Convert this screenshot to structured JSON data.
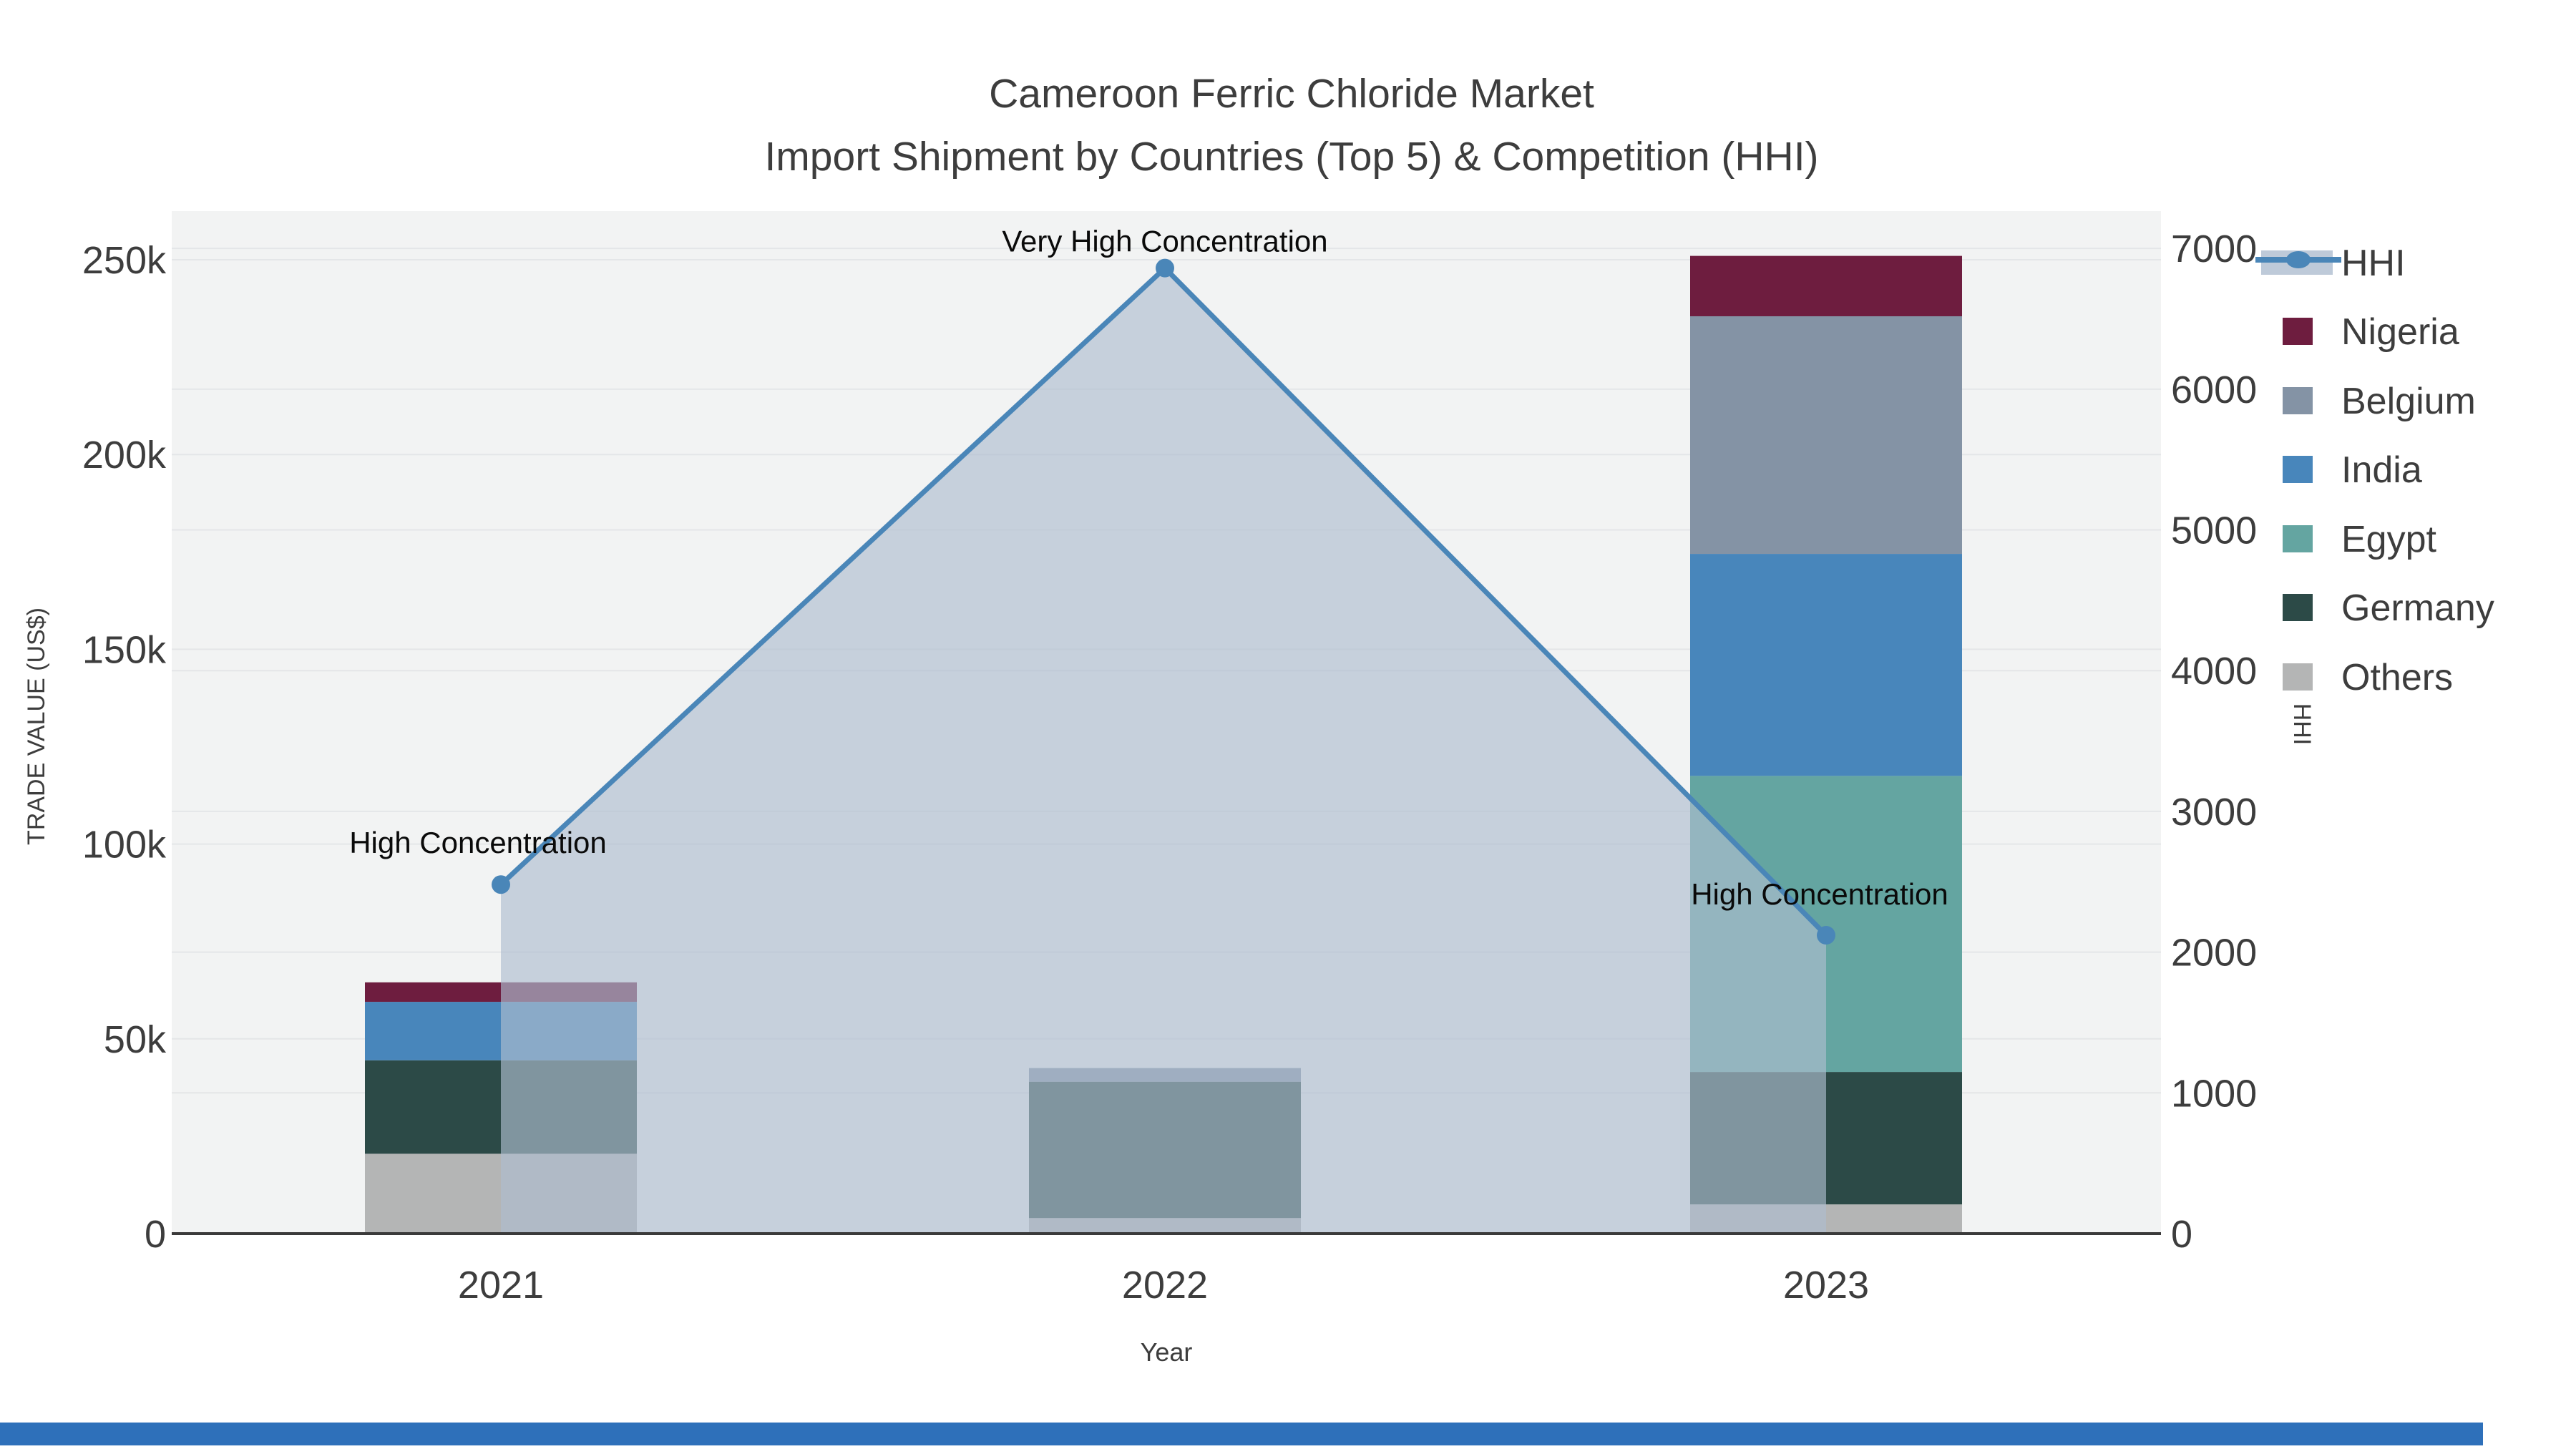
{
  "title": {
    "line1": "Cameroon Ferric Chloride Market",
    "line2": "Import Shipment by Countries (Top 5) & Competition (HHI)"
  },
  "chart_data": {
    "type": "combo: stacked-bar (left axis) + line-with-area (right axis)",
    "categories": [
      "2021",
      "2022",
      "2023"
    ],
    "series": [
      {
        "name": "Nigeria",
        "color": "#6e1d3f",
        "values": [
          5000,
          0,
          15500
        ]
      },
      {
        "name": "Belgium",
        "color": "#8493a5",
        "values": [
          0,
          3500,
          61000
        ]
      },
      {
        "name": "India",
        "color": "#4886bb",
        "values": [
          15000,
          0,
          57000
        ]
      },
      {
        "name": "Egypt",
        "color": "#64a5a1",
        "values": [
          0,
          0,
          76000
        ]
      },
      {
        "name": "Germany",
        "color": "#2c4a47",
        "values": [
          24000,
          35000,
          34000
        ]
      },
      {
        "name": "Others",
        "color": "#b4b5b5",
        "values": [
          20500,
          4000,
          7500
        ]
      }
    ],
    "stack_order_bottom_to_top": [
      "Others",
      "Germany",
      "Egypt",
      "India",
      "Belgium",
      "Nigeria"
    ],
    "hhi_line": {
      "name": "HHI",
      "color": "#4a86b8",
      "band_color": "#aebdd0",
      "band_opacity": 0.65,
      "values": [
        2480,
        6860,
        2120
      ]
    },
    "annotations": [
      {
        "text": "High Concentration",
        "category": "2021"
      },
      {
        "text": "Very High Concentration",
        "category": "2022"
      },
      {
        "text": "High Concentration",
        "category": "2023"
      }
    ],
    "x_axis": {
      "title": "Year"
    },
    "y_left": {
      "title": "TRADE VALUE (US$)",
      "tick_labels": [
        "0",
        "50k",
        "100k",
        "150k",
        "200k",
        "250k"
      ],
      "tick_values": [
        0,
        50000,
        100000,
        150000,
        200000,
        250000
      ],
      "max": 262500
    },
    "y_right": {
      "title": "HHI",
      "tick_labels": [
        "0",
        "1000",
        "2000",
        "3000",
        "4000",
        "5000",
        "6000",
        "7000"
      ],
      "tick_values": [
        0,
        1000,
        2000,
        3000,
        4000,
        5000,
        6000,
        7000
      ],
      "max": 7265
    },
    "legend_order": [
      "HHI",
      "Nigeria",
      "Belgium",
      "India",
      "Egypt",
      "Germany",
      "Others"
    ],
    "legend_position": "right-top",
    "grid_on": true,
    "plot_bg": "#f2f3f3",
    "grid_color": "#e4e6e8",
    "text_color": "#3d3d3d",
    "annotation_color": "#0a0a0a",
    "axis_line_color": "#3a3a3a"
  },
  "footer": {
    "accent_bar_color": "#2e70ba"
  }
}
